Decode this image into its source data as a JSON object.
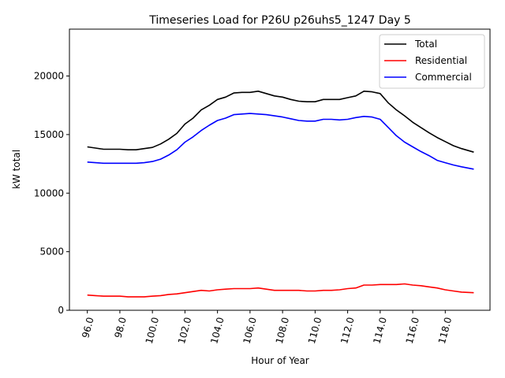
{
  "chart_data": {
    "type": "line",
    "title": "Timeseries Load for P26U p26uhs5_1247  Day 5",
    "xlabel": "Hour of Year",
    "ylabel": "kW total",
    "xlim": [
      94.9,
      120.75
    ],
    "ylim": [
      0,
      24000
    ],
    "xticks": [
      96,
      98,
      100,
      102,
      104,
      106,
      108,
      110,
      112,
      114,
      116,
      118
    ],
    "xtick_labels": [
      "96.0",
      "98.0",
      "100.0",
      "102.0",
      "104.0",
      "106.0",
      "108.0",
      "110.0",
      "112.0",
      "114.0",
      "116.0",
      "118.0"
    ],
    "yticks": [
      0,
      5000,
      10000,
      15000,
      20000
    ],
    "ytick_labels": [
      "0",
      "5000",
      "10000",
      "15000",
      "20000"
    ],
    "legend_position": "top-right",
    "x": [
      96.0,
      96.5,
      97.0,
      97.5,
      98.0,
      98.5,
      99.0,
      99.5,
      100.0,
      100.5,
      101.0,
      101.5,
      102.0,
      102.5,
      103.0,
      103.5,
      104.0,
      104.5,
      105.0,
      105.5,
      106.0,
      106.5,
      107.0,
      107.5,
      108.0,
      108.5,
      109.0,
      109.5,
      110.0,
      110.5,
      111.0,
      111.5,
      112.0,
      112.5,
      113.0,
      113.5,
      114.0,
      114.5,
      115.0,
      115.5,
      116.0,
      116.5,
      117.0,
      117.5,
      118.0,
      118.5,
      119.0,
      119.75
    ],
    "series": [
      {
        "name": "Total",
        "color": "#000000",
        "values": [
          13950,
          13850,
          13750,
          13750,
          13750,
          13700,
          13700,
          13800,
          13900,
          14200,
          14600,
          15100,
          15900,
          16400,
          17100,
          17500,
          18000,
          18200,
          18550,
          18600,
          18600,
          18700,
          18500,
          18300,
          18200,
          18000,
          17850,
          17800,
          17800,
          18000,
          18000,
          18000,
          18150,
          18300,
          18700,
          18650,
          18500,
          17700,
          17100,
          16600,
          16050,
          15600,
          15150,
          14750,
          14400,
          14050,
          13800,
          13500
        ]
      },
      {
        "name": "Residential",
        "color": "#ff0000",
        "values": [
          1300,
          1250,
          1200,
          1200,
          1200,
          1150,
          1150,
          1150,
          1200,
          1250,
          1350,
          1400,
          1500,
          1600,
          1700,
          1650,
          1750,
          1800,
          1850,
          1850,
          1850,
          1900,
          1800,
          1700,
          1700,
          1700,
          1700,
          1650,
          1650,
          1700,
          1700,
          1750,
          1850,
          1900,
          2150,
          2150,
          2200,
          2200,
          2200,
          2250,
          2150,
          2100,
          2000,
          1900,
          1750,
          1650,
          1550,
          1500
        ]
      },
      {
        "name": "Commercial",
        "color": "#0000ff",
        "values": [
          12650,
          12600,
          12550,
          12550,
          12550,
          12550,
          12550,
          12600,
          12700,
          12900,
          13250,
          13700,
          14350,
          14800,
          15350,
          15800,
          16200,
          16400,
          16700,
          16750,
          16800,
          16750,
          16700,
          16600,
          16500,
          16350,
          16200,
          16150,
          16150,
          16300,
          16300,
          16250,
          16300,
          16450,
          16550,
          16500,
          16300,
          15600,
          14900,
          14350,
          13950,
          13550,
          13200,
          12800,
          12600,
          12400,
          12250,
          12050
        ]
      }
    ]
  }
}
